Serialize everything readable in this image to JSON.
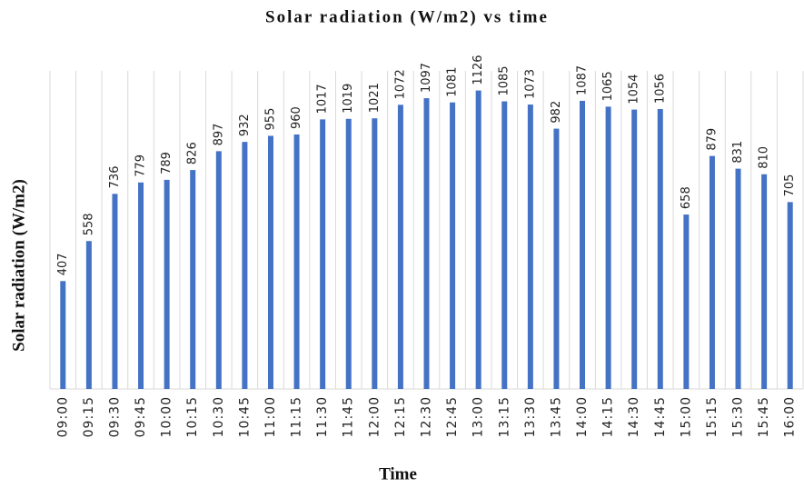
{
  "chart_data": {
    "type": "bar",
    "title": "Solar radiation (W/m2) vs time",
    "x_label": "Time",
    "y_label": "Solar radiation (W/m2)",
    "categories": [
      "09:00",
      "09:15",
      "09:30",
      "09:45",
      "10:00",
      "10:15",
      "10:30",
      "10:45",
      "11:00",
      "11:15",
      "11:30",
      "11:45",
      "12:00",
      "12:15",
      "12:30",
      "12:45",
      "13:00",
      "13:15",
      "13:30",
      "13:45",
      "14:00",
      "14:15",
      "14:30",
      "14:45",
      "15:00",
      "15:15",
      "15:30",
      "15:45",
      "16:00"
    ],
    "values": [
      407,
      558,
      736,
      779,
      789,
      826,
      897,
      932,
      955,
      960,
      1017,
      1019,
      1021,
      1072,
      1097,
      1081,
      1126,
      1085,
      1073,
      982,
      1087,
      1065,
      1054,
      1056,
      658,
      879,
      831,
      810,
      705
    ],
    "color": "#4472c4",
    "ylim": [
      0,
      1200
    ]
  }
}
